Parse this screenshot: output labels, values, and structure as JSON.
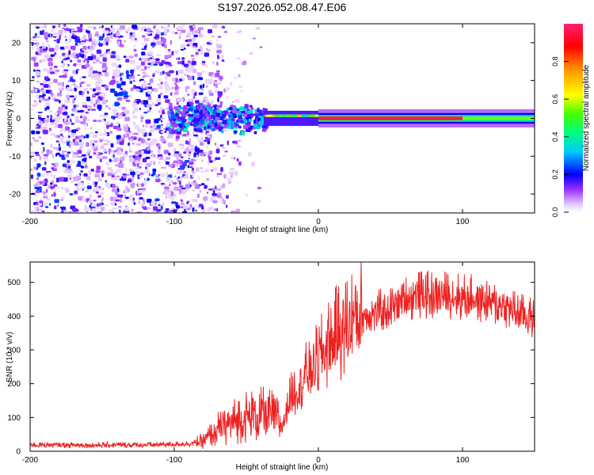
{
  "figure": {
    "title": "S197.2026.052.08.47.E06"
  },
  "chart_data": [
    {
      "type": "heatmap",
      "name": "spectrogram",
      "xlabel": "Height of straight line (km)",
      "ylabel": "Frequency (Hz)",
      "xlim": [
        -200,
        150
      ],
      "ylim": [
        -25,
        25
      ],
      "xticks": [
        -200,
        -100,
        0,
        100
      ],
      "yticks": [
        -20,
        -10,
        0,
        10,
        20
      ],
      "colorbar": {
        "label": "Normalized spectral amplitude",
        "range": [
          0,
          1
        ],
        "ticks": [
          0.0,
          0.2,
          0.4,
          0.6,
          0.8
        ],
        "tick_labels": [
          "0.0",
          "0.2",
          "0.4",
          "0.6",
          "0.8"
        ]
      },
      "features": [
        {
          "name": "noise",
          "x_range": [
            -200,
            -80
          ],
          "y_range": [
            -25,
            25
          ],
          "amplitude": 0.15
        },
        {
          "name": "onset-burst",
          "x_range": [
            -105,
            -38
          ],
          "y_range": [
            -4,
            4
          ],
          "amplitude": 0.3
        },
        {
          "name": "transition",
          "x_range": [
            -38,
            0
          ],
          "y_range": [
            -1.5,
            1.5
          ],
          "amplitude": 0.6
        },
        {
          "name": "carrier",
          "x_range": [
            0,
            100
          ],
          "y_range": [
            -1,
            1
          ],
          "amplitude": 0.97
        },
        {
          "name": "carrier-fade",
          "x_range": [
            100,
            150
          ],
          "y_range": [
            -1.5,
            1.5
          ],
          "amplitude": 0.55
        }
      ]
    },
    {
      "type": "line",
      "name": "snr",
      "xlabel": "Height of straight line (km)",
      "ylabel": "SNR (10 * v/v)",
      "xlim": [
        -200,
        150
      ],
      "ylim": [
        0,
        560
      ],
      "xticks": [
        -200,
        -100,
        0,
        100
      ],
      "yticks": [
        0,
        100,
        200,
        300,
        400,
        500
      ],
      "series": [
        {
          "name": "SNR",
          "color": "#ee2222",
          "x": [
            -200,
            -180,
            -160,
            -140,
            -120,
            -100,
            -90,
            -80,
            -70,
            -60,
            -50,
            -40,
            -30,
            -25,
            -20,
            -10,
            0,
            10,
            20,
            30,
            40,
            50,
            60,
            70,
            80,
            90,
            100,
            110,
            120,
            130,
            140,
            150
          ],
          "values": [
            18,
            18,
            17,
            18,
            18,
            20,
            22,
            28,
            60,
            80,
            95,
            100,
            95,
            70,
            150,
            210,
            260,
            320,
            360,
            395,
            405,
            420,
            445,
            455,
            455,
            455,
            450,
            445,
            435,
            420,
            400,
            385
          ]
        }
      ]
    }
  ]
}
